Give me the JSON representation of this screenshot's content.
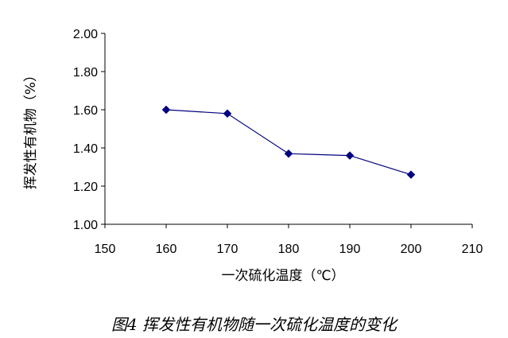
{
  "caption": "图4 挥发性有机物随一次硫化温度的变化",
  "chart_data": {
    "type": "line",
    "title": "",
    "xlabel": "一次硫化温度（℃）",
    "ylabel": "挥发性有机物（%）",
    "xlim": [
      150,
      210
    ],
    "ylim": [
      1.0,
      2.0
    ],
    "x_ticks": [
      "150",
      "160",
      "170",
      "180",
      "190",
      "200",
      "210"
    ],
    "y_ticks": [
      "1.00",
      "1.20",
      "1.40",
      "1.60",
      "1.80",
      "2.00"
    ],
    "grid": false,
    "legend": "none",
    "series": [
      {
        "x": [
          160,
          170,
          180,
          190,
          200
        ],
        "y": [
          1.6,
          1.58,
          1.37,
          1.36,
          1.26
        ],
        "color": "#000080",
        "marker": "diamond"
      }
    ]
  }
}
